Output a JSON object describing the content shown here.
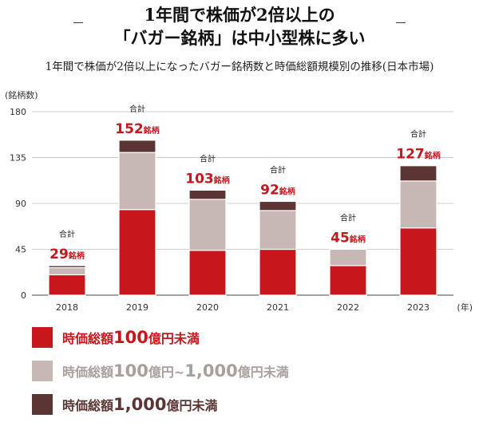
{
  "title": {
    "line1": "1年間で株価が2倍以上の",
    "line2": "「バガー銘柄」は中小型株に多い"
  },
  "subtitle": "1年間で株価が2倍以上になったバガー銘柄数と時価総額規模別の推移(日本市場)",
  "chart_data": {
    "type": "bar",
    "stacked": true,
    "categories": [
      "2018",
      "2019",
      "2020",
      "2021",
      "2022",
      "2023"
    ],
    "series": [
      {
        "name": "時価総額100億円未満",
        "color": "#c8161d",
        "values": [
          20,
          84,
          44,
          45,
          29,
          66
        ]
      },
      {
        "name": "時価総額100億円~1,000億円未満",
        "color": "#c7b8b5",
        "values": [
          7,
          56,
          50,
          38,
          16,
          46
        ]
      },
      {
        "name": "時価総額1,000億円未満",
        "color": "#5b3533",
        "values": [
          2,
          12,
          9,
          9,
          0,
          15
        ]
      }
    ],
    "totals": [
      29,
      152,
      103,
      92,
      45,
      127
    ],
    "total_label": "合計",
    "total_unit": "銘柄",
    "ylabel": "(銘柄数)",
    "xlabel": "(年)",
    "ylim": [
      0,
      180
    ],
    "yticks": [
      0,
      45,
      90,
      135,
      180
    ],
    "grid": true
  },
  "legend": [
    {
      "prefix": "時価総額",
      "num1": "100",
      "mid": "億円",
      "num2": "",
      "suffix": "未満",
      "color": "#c8161d"
    },
    {
      "prefix": "時価総額",
      "num1": "100",
      "mid": "億円~",
      "num2": "1,000",
      "suffix": "億円未満",
      "color": "#c7b8b5"
    },
    {
      "prefix": "時価総額",
      "num1": "1,000",
      "mid": "億円未満",
      "num2": "",
      "suffix": "",
      "color": "#5b3533"
    }
  ]
}
